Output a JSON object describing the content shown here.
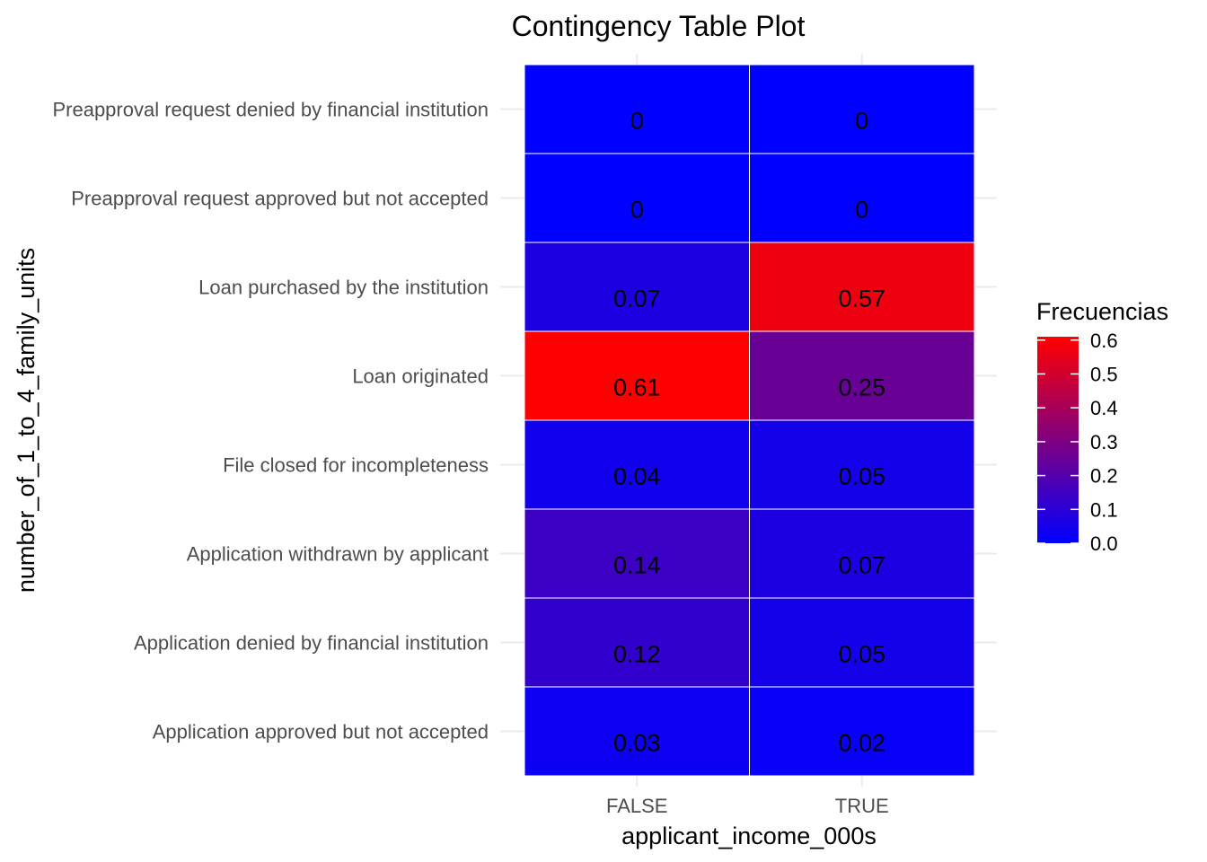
{
  "chart_data": {
    "type": "heatmap",
    "title": "Contingency Table Plot",
    "xlabel": "applicant_income_000s",
    "ylabel": "number_of_1_to_4_family_units",
    "x_categories": [
      "FALSE",
      "TRUE"
    ],
    "y_categories": [
      "Application approved but not accepted",
      "Application denied by financial institution",
      "Application withdrawn by applicant",
      "File closed for incompleteness",
      "Loan originated",
      "Loan purchased by the institution",
      "Preapproval request approved but not accepted",
      "Preapproval request denied by financial institution"
    ],
    "values": [
      [
        0.03,
        0.02
      ],
      [
        0.12,
        0.05
      ],
      [
        0.14,
        0.07
      ],
      [
        0.04,
        0.05
      ],
      [
        0.61,
        0.25
      ],
      [
        0.07,
        0.57
      ],
      [
        0,
        0
      ],
      [
        0,
        0
      ]
    ],
    "color_low": "#0000FF",
    "color_high": "#FF0000",
    "grid": true,
    "legend": {
      "title": "Frecuencias",
      "position": "right",
      "min": 0,
      "max": 0.61,
      "ticks": [
        "0.0",
        "0.1",
        "0.2",
        "0.3",
        "0.4",
        "0.5",
        "0.6"
      ]
    }
  }
}
